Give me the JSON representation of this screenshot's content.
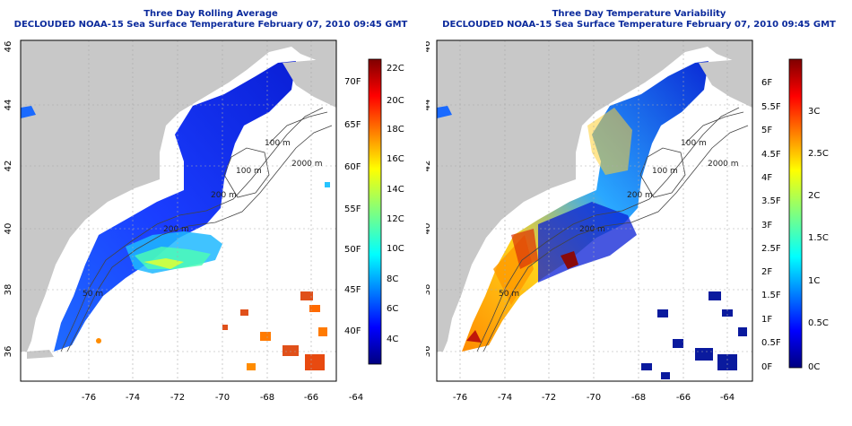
{
  "left": {
    "title": "Three Day Rolling Average",
    "subtitle": "DECLOUDED NOAA-15 Sea Surface Temperature February 07, 2010 09:45 GMT",
    "colorbar_c": [
      "22C",
      "20C",
      "18C",
      "16C",
      "14C",
      "12C",
      "10C",
      "8C",
      "6C",
      "4C"
    ],
    "colorbar_f": [
      "70F",
      "65F",
      "60F",
      "55F",
      "50F",
      "45F",
      "40F"
    ],
    "isobaths": [
      "100 m",
      "100 m",
      "2000 m",
      "200 m",
      "200 m",
      "50 m"
    ]
  },
  "right": {
    "title": "Three Day Temperature Variability",
    "subtitle": "DECLOUDED NOAA-15 Sea Surface Temperature February 07, 2010 09:45 GMT",
    "colorbar_c": [
      "3C",
      "2.5C",
      "2C",
      "1.5C",
      "1C",
      "0.5C",
      "0C"
    ],
    "colorbar_f": [
      "6F",
      "5.5F",
      "5F",
      "4.5F",
      "4F",
      "3.5F",
      "3F",
      "2.5F",
      "2F",
      "1.5F",
      "1F",
      "0.5F",
      "0F"
    ],
    "isobaths": [
      "100 m",
      "100 m",
      "2000 m",
      "200 m",
      "200 m",
      "50 m"
    ]
  },
  "axes": {
    "lon_ticks": [
      "-76",
      "-74",
      "-72",
      "-70",
      "-68",
      "-66",
      "-64"
    ],
    "lat_ticks": [
      "46",
      "44",
      "42",
      "40",
      "38",
      "36"
    ]
  },
  "colors": {
    "title": "#0b2a9c",
    "land": "#c8c8c8",
    "ocean": "#ffffff",
    "colormap": [
      "#00007f",
      "#0000ff",
      "#007fff",
      "#00ffff",
      "#7fff7f",
      "#ffff00",
      "#ff7f00",
      "#ff0000",
      "#7f0000"
    ]
  }
}
